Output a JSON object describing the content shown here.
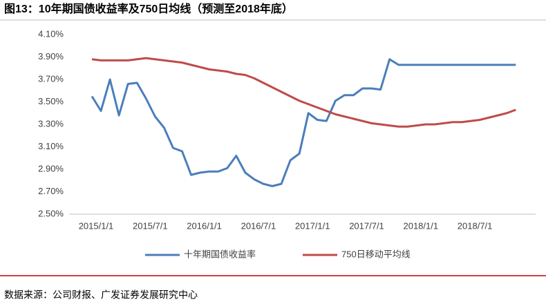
{
  "chart_data": {
    "type": "line",
    "title": "图13：10年期国债收益率及750日均线（预测至2018年底）",
    "source": "数据来源：公司财报、广发证券发展研究中心",
    "categories": [
      "2015/1/1",
      null,
      null,
      null,
      null,
      null,
      "2015/7/1",
      null,
      null,
      null,
      null,
      null,
      "2016/1/1",
      null,
      null,
      null,
      null,
      null,
      "2016/7/1",
      null,
      null,
      null,
      null,
      null,
      "2017/1/1",
      null,
      null,
      null,
      null,
      null,
      "2017/7/1",
      null,
      null,
      null,
      null,
      null,
      "2018/1/1",
      null,
      null,
      null,
      null,
      null,
      "2018/7/1",
      null,
      null,
      null,
      null,
      null
    ],
    "series": [
      {
        "name": "十年期国债收益率",
        "color": "#4a7ebb",
        "values": [
          3.55,
          3.42,
          3.7,
          3.38,
          3.66,
          3.67,
          3.53,
          3.37,
          3.27,
          3.09,
          3.06,
          2.85,
          2.87,
          2.88,
          2.88,
          2.91,
          3.02,
          2.87,
          2.81,
          2.77,
          2.75,
          2.77,
          2.98,
          3.04,
          3.4,
          3.34,
          3.33,
          3.51,
          3.56,
          3.56,
          3.62,
          3.62,
          3.61,
          3.88,
          3.83,
          3.83,
          3.83,
          3.83,
          3.83,
          3.83,
          3.83,
          3.83,
          3.83,
          3.83,
          3.83,
          3.83,
          3.83,
          3.83
        ]
      },
      {
        "name": "750日移动平均线",
        "color": "#be4b48",
        "values": [
          3.88,
          3.87,
          3.87,
          3.87,
          3.87,
          3.88,
          3.89,
          3.88,
          3.87,
          3.86,
          3.85,
          3.83,
          3.81,
          3.79,
          3.78,
          3.77,
          3.75,
          3.74,
          3.71,
          3.67,
          3.63,
          3.59,
          3.55,
          3.51,
          3.48,
          3.45,
          3.42,
          3.39,
          3.37,
          3.35,
          3.33,
          3.31,
          3.3,
          3.29,
          3.28,
          3.28,
          3.29,
          3.3,
          3.3,
          3.31,
          3.32,
          3.32,
          3.33,
          3.34,
          3.36,
          3.38,
          3.4,
          3.43
        ]
      }
    ],
    "ylim": [
      2.5,
      4.1
    ],
    "yticks": [
      {
        "value": 2.5,
        "label": "2.50%"
      },
      {
        "value": 2.7,
        "label": "2.70%"
      },
      {
        "value": 2.9,
        "label": "2.90%"
      },
      {
        "value": 3.1,
        "label": "3.10%"
      },
      {
        "value": 3.3,
        "label": "3.30%"
      },
      {
        "value": 3.5,
        "label": "3.50%"
      },
      {
        "value": 3.7,
        "label": "3.70%"
      },
      {
        "value": 3.9,
        "label": "3.90%"
      },
      {
        "value": 4.1,
        "label": "4.10%"
      }
    ],
    "grid": false
  }
}
